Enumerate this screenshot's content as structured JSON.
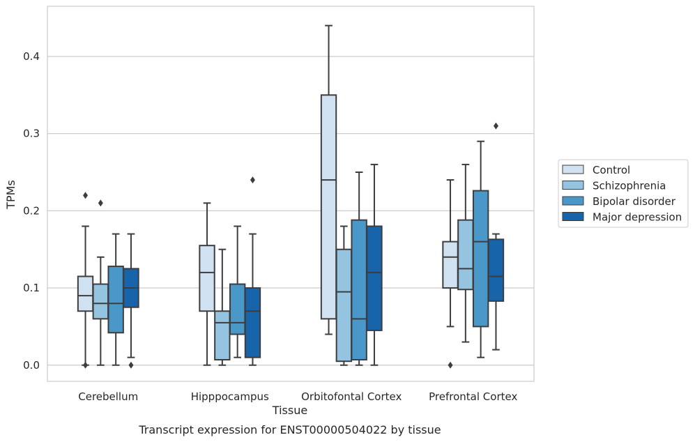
{
  "chart_data": {
    "type": "box",
    "caption": "Transcript expression for ENST00000504022 by tissue",
    "xlabel": "Tissue",
    "ylabel": "TPMs",
    "ylim": [
      -0.021,
      0.465
    ],
    "yticks": [
      0.0,
      0.1,
      0.2,
      0.3,
      0.4
    ],
    "ytick_labels": [
      "0.0",
      "0.1",
      "0.2",
      "0.3",
      "0.4"
    ],
    "grid": "horizontal",
    "legend_position": "right",
    "categories": [
      "Cerebellum",
      "Hipppocampus",
      "Orbitofontal Cortex",
      "Prefrontal Cortex"
    ],
    "series": [
      {
        "name": "Control",
        "color": "#d0e1f2",
        "boxes": [
          {
            "whislo": 0.0,
            "q1": 0.07,
            "med": 0.09,
            "q3": 0.115,
            "whishi": 0.18,
            "fliers": [
              0.22,
              0.0
            ]
          },
          {
            "whislo": 0.0,
            "q1": 0.07,
            "med": 0.12,
            "q3": 0.155,
            "whishi": 0.21,
            "fliers": []
          },
          {
            "whislo": 0.04,
            "q1": 0.06,
            "med": 0.24,
            "q3": 0.35,
            "whishi": 0.44,
            "fliers": []
          },
          {
            "whislo": 0.05,
            "q1": 0.1,
            "med": 0.14,
            "q3": 0.16,
            "whishi": 0.24,
            "fliers": [
              0.0
            ]
          }
        ]
      },
      {
        "name": "Schizophrenia",
        "color": "#94c4df",
        "boxes": [
          {
            "whislo": 0.0,
            "q1": 0.06,
            "med": 0.08,
            "q3": 0.105,
            "whishi": 0.14,
            "fliers": [
              0.21
            ]
          },
          {
            "whislo": 0.0,
            "q1": 0.007,
            "med": 0.055,
            "q3": 0.07,
            "whishi": 0.15,
            "fliers": []
          },
          {
            "whislo": 0.0,
            "q1": 0.005,
            "med": 0.095,
            "q3": 0.15,
            "whishi": 0.18,
            "fliers": []
          },
          {
            "whislo": 0.03,
            "q1": 0.098,
            "med": 0.125,
            "q3": 0.188,
            "whishi": 0.26,
            "fliers": []
          }
        ]
      },
      {
        "name": "Bipolar disorder",
        "color": "#4a98c9",
        "boxes": [
          {
            "whislo": 0.0,
            "q1": 0.042,
            "med": 0.08,
            "q3": 0.128,
            "whishi": 0.17,
            "fliers": []
          },
          {
            "whislo": 0.01,
            "q1": 0.04,
            "med": 0.055,
            "q3": 0.105,
            "whishi": 0.18,
            "fliers": []
          },
          {
            "whislo": 0.0,
            "q1": 0.007,
            "med": 0.06,
            "q3": 0.188,
            "whishi": 0.25,
            "fliers": []
          },
          {
            "whislo": 0.01,
            "q1": 0.05,
            "med": 0.16,
            "q3": 0.226,
            "whishi": 0.29,
            "fliers": []
          }
        ]
      },
      {
        "name": "Major depression",
        "color": "#1764ab",
        "boxes": [
          {
            "whislo": 0.01,
            "q1": 0.075,
            "med": 0.1,
            "q3": 0.125,
            "whishi": 0.17,
            "fliers": [
              0.0
            ]
          },
          {
            "whislo": 0.0,
            "q1": 0.01,
            "med": 0.07,
            "q3": 0.1,
            "whishi": 0.17,
            "fliers": [
              0.24
            ]
          },
          {
            "whislo": 0.0,
            "q1": 0.045,
            "med": 0.12,
            "q3": 0.18,
            "whishi": 0.26,
            "fliers": []
          },
          {
            "whislo": 0.02,
            "q1": 0.083,
            "med": 0.115,
            "q3": 0.163,
            "whishi": 0.17,
            "fliers": [
              0.31
            ]
          }
        ]
      }
    ],
    "colors": {
      "edge": "#3d3d3d",
      "grid": "#cccccc",
      "frame": "#cccccc"
    }
  }
}
